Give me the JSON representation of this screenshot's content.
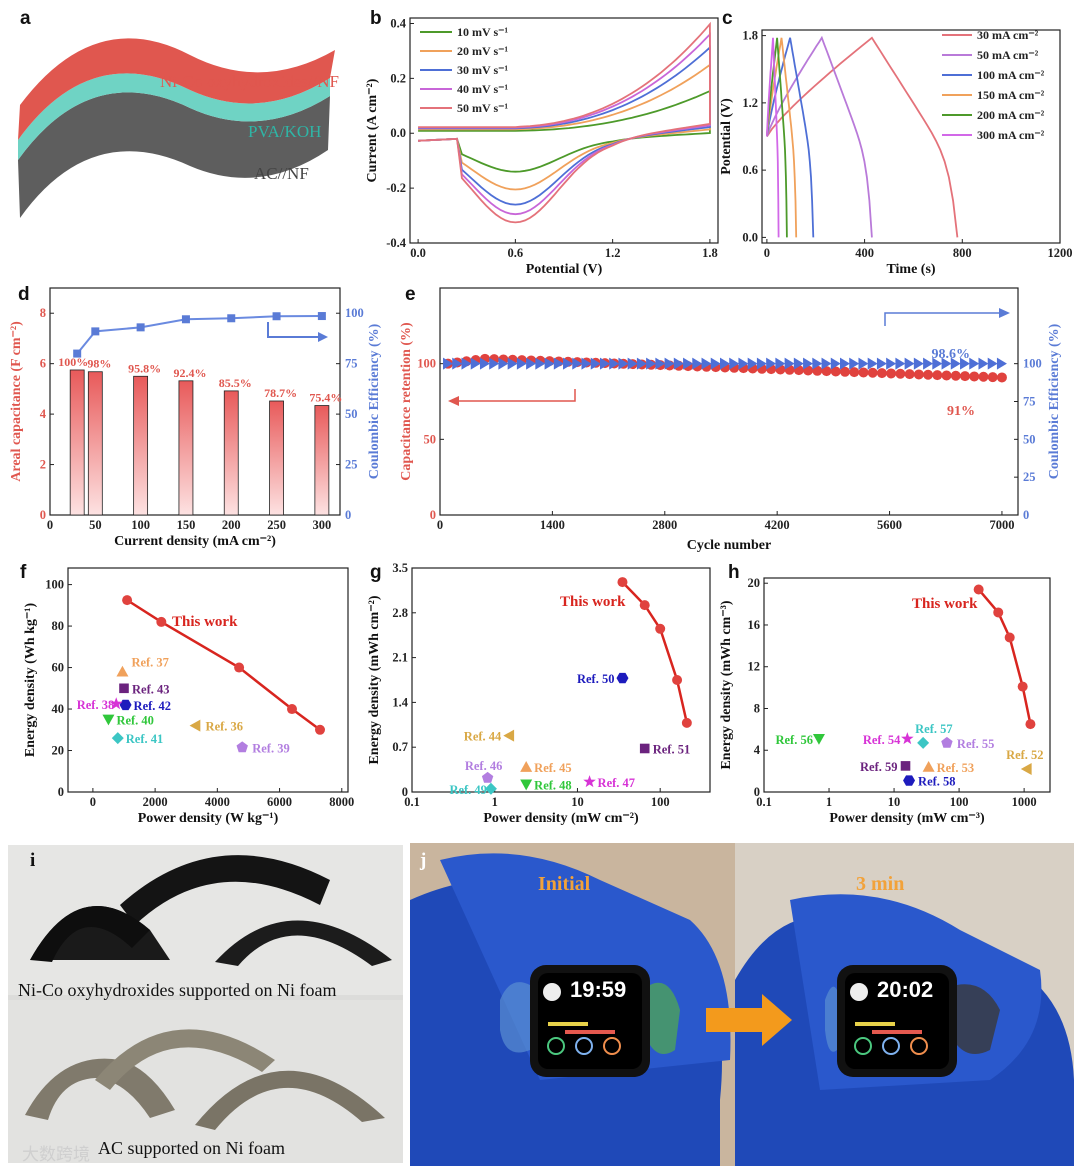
{
  "panels": {
    "a": "a",
    "b": "b",
    "c": "c",
    "d": "d",
    "e": "e",
    "f": "f",
    "g": "g",
    "h": "h",
    "i": "i",
    "j": "j"
  },
  "panel_a": {
    "layers": [
      "Ni-Co oxyhydroxides//NF",
      "PVA/KOH",
      "AC//NF"
    ],
    "colors": [
      "#e0574f",
      "#6fd3c4",
      "#555555"
    ]
  },
  "chart_data": [
    {
      "id": "b",
      "type": "line",
      "xlabel": "Potential (V)",
      "ylabel": "Current (A cm⁻²)",
      "xlim": [
        -0.05,
        1.85
      ],
      "ylim": [
        -0.4,
        0.42
      ],
      "xticks": [
        "0.0",
        "0.6",
        "1.2",
        "1.8"
      ],
      "yticks": [
        "-0.4",
        "-0.2",
        "0.0",
        "0.2",
        "0.4"
      ],
      "series": [
        {
          "name": "10 mV s⁻¹",
          "color": "#4d9a2a",
          "amp": 0.145,
          "cmin": -0.12
        },
        {
          "name": "20 mV s⁻¹",
          "color": "#f0a15b",
          "amp": 0.235,
          "cmin": -0.185
        },
        {
          "name": "30 mV s⁻¹",
          "color": "#4e6fd6",
          "amp": 0.295,
          "cmin": -0.24
        },
        {
          "name": "40 mV s⁻¹",
          "color": "#c866d8",
          "amp": 0.34,
          "cmin": -0.275
        },
        {
          "name": "50 mV s⁻¹",
          "color": "#e4727a",
          "amp": 0.375,
          "cmin": -0.305
        }
      ]
    },
    {
      "id": "c",
      "type": "line",
      "xlabel": "Time (s)",
      "ylabel": "Potential (V)",
      "xlim": [
        -20,
        1200
      ],
      "ylim": [
        -0.05,
        1.85
      ],
      "xticks": [
        "0",
        "400",
        "800",
        "1200"
      ],
      "yticks": [
        "0.0",
        "0.6",
        "1.2",
        "1.8"
      ],
      "series": [
        {
          "name": "30 mA cm⁻²",
          "color": "#e4727a",
          "tc": 430,
          "td": 780
        },
        {
          "name": "50 mA cm⁻²",
          "color": "#b97ad9",
          "tc": 225,
          "td": 430
        },
        {
          "name": "100 mA cm⁻²",
          "color": "#4e6fd6",
          "tc": 95,
          "td": 190
        },
        {
          "name": "150 mA cm⁻²",
          "color": "#f0a15b",
          "tc": 60,
          "td": 120
        },
        {
          "name": "200 mA cm⁻²",
          "color": "#4d9a2a",
          "tc": 42,
          "td": 82
        },
        {
          "name": "300 mA cm⁻²",
          "color": "#d268e8",
          "tc": 25,
          "td": 48
        }
      ]
    },
    {
      "id": "d",
      "type": "bar",
      "xlabel": "Current density (mA cm⁻²)",
      "ylabel": "Areal capacitance (F cm⁻²)",
      "y2label": "Coulombic Efficiency (%)",
      "x": [
        30,
        50,
        100,
        150,
        200,
        250,
        300
      ],
      "values": [
        5.75,
        5.68,
        5.5,
        5.32,
        4.92,
        4.52,
        4.34
      ],
      "retention_labels": [
        "100%",
        "98%",
        "95.8%",
        "92.4%",
        "85.5%",
        "78.7%",
        "75.4%"
      ],
      "efficiency": [
        80,
        91,
        93,
        97,
        97.5,
        98.5,
        98.6
      ],
      "xlim": [
        0,
        320
      ],
      "ylim": [
        0,
        9
      ],
      "y2lim": [
        0,
        112.5
      ],
      "xticks": [
        "0",
        "50",
        "100",
        "150",
        "200",
        "250",
        "300"
      ],
      "yticks": [
        "0",
        "2",
        "4",
        "6",
        "8"
      ],
      "y2ticks": [
        "0",
        "25",
        "50",
        "75",
        "100"
      ]
    },
    {
      "id": "e",
      "type": "scatter",
      "xlabel": "Cycle number",
      "ylabel": "Capacitance retention (%)",
      "y2label": "Coulombic Efficiency (%)",
      "xlim": [
        0,
        7200
      ],
      "ylim": [
        0,
        150
      ],
      "y2lim": [
        0,
        150
      ],
      "xticks": [
        "0",
        "1400",
        "2800",
        "4200",
        "5600",
        "7000"
      ],
      "yticks": [
        "0",
        "50",
        "100"
      ],
      "y2ticks": [
        "0",
        "25",
        "50",
        "75",
        "100"
      ],
      "retention_end": "91%",
      "efficiency_end": "98.6%"
    },
    {
      "id": "f",
      "type": "scatter",
      "xlabel": "Power density (W kg⁻¹)",
      "ylabel": "Energy density (Wh kg⁻¹)",
      "xlim": [
        -800,
        8200
      ],
      "ylim": [
        0,
        108
      ],
      "xticks": [
        "0",
        "2000",
        "4000",
        "6000",
        "8000"
      ],
      "yticks": [
        "0",
        "20",
        "40",
        "60",
        "80",
        "100"
      ],
      "this_work": {
        "label": "This work",
        "x": [
          1100,
          2200,
          4700,
          6400,
          7300
        ],
        "y": [
          92.5,
          82,
          60,
          40,
          30
        ]
      },
      "refs": [
        {
          "label": "Ref. 37",
          "x": 950,
          "y": 58,
          "color": "#f0a15b",
          "marker": "triangle"
        },
        {
          "label": "Ref. 43",
          "x": 1000,
          "y": 50,
          "color": "#6b237e",
          "marker": "square"
        },
        {
          "label": "Ref. 42",
          "x": 1050,
          "y": 42,
          "color": "#1d1bbd",
          "marker": "hexagon"
        },
        {
          "label": "Ref. 38",
          "x": 750,
          "y": 42.5,
          "color": "#d733d6",
          "marker": "star"
        },
        {
          "label": "Ref. 40",
          "x": 500,
          "y": 35,
          "color": "#30c73b",
          "marker": "tri-down"
        },
        {
          "label": "Ref. 41",
          "x": 800,
          "y": 26,
          "color": "#3cc6c4",
          "marker": "diamond"
        },
        {
          "label": "Ref. 36",
          "x": 3300,
          "y": 32,
          "color": "#d9a845",
          "marker": "tri-left"
        },
        {
          "label": "Ref. 39",
          "x": 4800,
          "y": 21.5,
          "color": "#b27ee0",
          "marker": "pentagon"
        }
      ]
    },
    {
      "id": "g",
      "type": "scatter",
      "xlabel": "Power density (mW cm⁻²)",
      "ylabel": "Energy density (mWh cm⁻²)",
      "xscale": "log",
      "xlim": [
        0.1,
        400
      ],
      "ylim": [
        0,
        3.5
      ],
      "xticks": [
        "0.1",
        "1",
        "10",
        "100"
      ],
      "yticks": [
        "0",
        "0.7",
        "1.4",
        "2.1",
        "2.8",
        "3.5"
      ],
      "this_work": {
        "label": "This work",
        "x": [
          35,
          65,
          100,
          160,
          210
        ],
        "y": [
          3.28,
          2.92,
          2.55,
          1.75,
          1.08
        ]
      },
      "refs": [
        {
          "label": "Ref. 50",
          "x": 35,
          "y": 1.78,
          "color": "#1d1bbd",
          "marker": "hexagon"
        },
        {
          "label": "Ref. 44",
          "x": 1.5,
          "y": 0.88,
          "color": "#d9a845",
          "marker": "tri-left"
        },
        {
          "label": "Ref. 51",
          "x": 65,
          "y": 0.68,
          "color": "#6b237e",
          "marker": "square"
        },
        {
          "label": "Ref. 45",
          "x": 2.4,
          "y": 0.39,
          "color": "#f0a15b",
          "marker": "triangle"
        },
        {
          "label": "Ref. 46",
          "x": 0.82,
          "y": 0.22,
          "color": "#b27ee0",
          "marker": "pentagon"
        },
        {
          "label": "Ref. 47",
          "x": 14,
          "y": 0.16,
          "color": "#d733d6",
          "marker": "star"
        },
        {
          "label": "Ref. 48",
          "x": 2.4,
          "y": 0.12,
          "color": "#30c73b",
          "marker": "tri-down"
        },
        {
          "label": "Ref. 49",
          "x": 0.9,
          "y": 0.05,
          "color": "#3cc6c4",
          "marker": "diamond"
        }
      ]
    },
    {
      "id": "h",
      "type": "scatter",
      "xlabel": "Power density (mW cm⁻³)",
      "ylabel": "Energy density (mWh cm⁻³)",
      "xscale": "log",
      "xlim": [
        0.1,
        2500
      ],
      "ylim": [
        0,
        20.5
      ],
      "xticks": [
        "0.1",
        "1",
        "10",
        "100",
        "1000"
      ],
      "yticks": [
        "0",
        "4",
        "8",
        "12",
        "16",
        "20"
      ],
      "this_work": {
        "label": "This work",
        "x": [
          200,
          400,
          600,
          950,
          1250
        ],
        "y": [
          19.4,
          17.2,
          14.8,
          10.1,
          6.5
        ]
      },
      "refs": [
        {
          "label": "Ref. 57",
          "x": 28,
          "y": 4.7,
          "color": "#3cc6c4",
          "marker": "diamond"
        },
        {
          "label": "Ref. 55",
          "x": 65,
          "y": 4.7,
          "color": "#b27ee0",
          "marker": "pentagon"
        },
        {
          "label": "Ref. 54",
          "x": 16,
          "y": 5.1,
          "color": "#d733d6",
          "marker": "star"
        },
        {
          "label": "Ref. 56",
          "x": 0.7,
          "y": 5.1,
          "color": "#30c73b",
          "marker": "tri-down"
        },
        {
          "label": "Ref. 52",
          "x": 1100,
          "y": 2.2,
          "color": "#d9a845",
          "marker": "tri-left"
        },
        {
          "label": "Ref. 59",
          "x": 15,
          "y": 2.5,
          "color": "#6b237e",
          "marker": "square"
        },
        {
          "label": "Ref. 53",
          "x": 34,
          "y": 2.4,
          "color": "#f0a15b",
          "marker": "triangle"
        },
        {
          "label": "Ref. 58",
          "x": 17,
          "y": 1.1,
          "color": "#1d1bbd",
          "marker": "hexagon"
        }
      ]
    }
  ],
  "panel_i": {
    "top_caption": "Ni-Co oxyhydroxides supported on Ni foam",
    "bottom_caption": "AC supported on Ni foam",
    "watermark": "大数跨境"
  },
  "panel_j": {
    "initial_label": "Initial",
    "after_label": "3 min",
    "time_initial": "19:59",
    "time_after": "20:02"
  }
}
